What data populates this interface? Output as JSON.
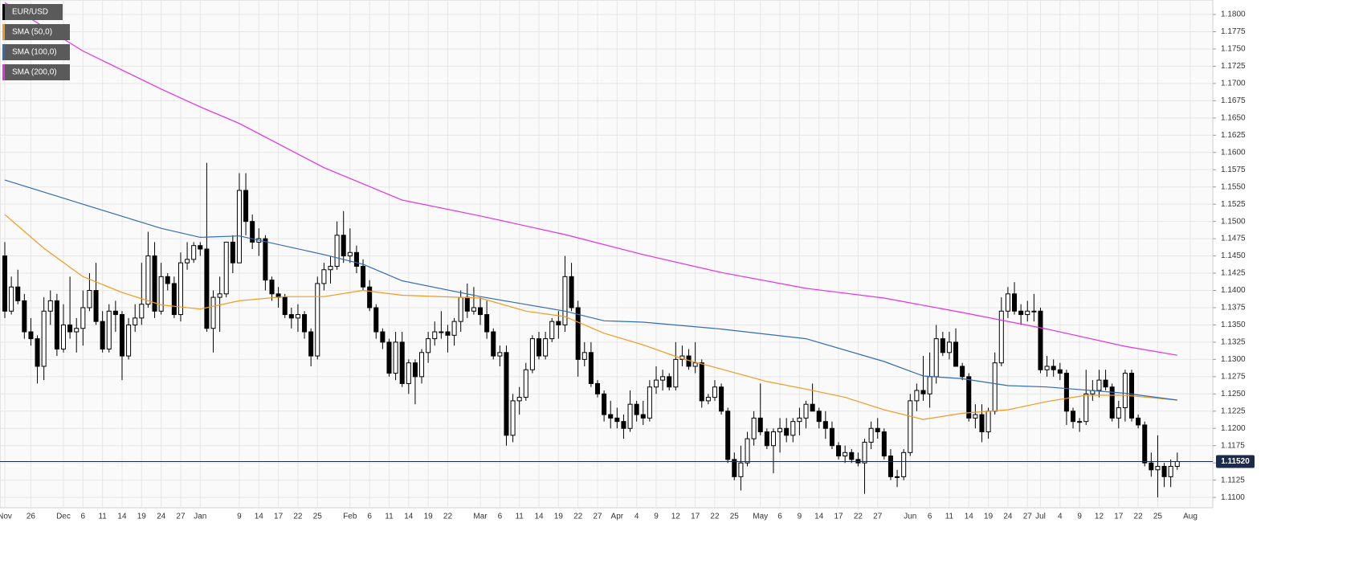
{
  "chart_data": {
    "type": "candlestick",
    "name": "EUR/USD",
    "categories": [
      "Nov",
      null,
      null,
      null,
      "26",
      null,
      null,
      null,
      null,
      "Dec",
      null,
      null,
      "6",
      null,
      null,
      "11",
      null,
      null,
      "14",
      null,
      null,
      "19",
      null,
      null,
      "24",
      null,
      null,
      "27",
      null,
      null,
      "Jan",
      null,
      null,
      null,
      null,
      null,
      "9",
      null,
      null,
      "14",
      null,
      null,
      "17",
      null,
      null,
      "22",
      null,
      null,
      "25",
      null,
      null,
      null,
      null,
      "Feb",
      null,
      null,
      "6",
      null,
      null,
      "11",
      null,
      null,
      "14",
      null,
      null,
      "19",
      null,
      null,
      "22",
      null,
      null,
      null,
      null,
      "Mar",
      null,
      null,
      "6",
      null,
      null,
      "11",
      null,
      null,
      "14",
      null,
      null,
      "19",
      null,
      null,
      "22",
      null,
      null,
      "27",
      null,
      null,
      "Apr",
      null,
      null,
      "4",
      null,
      null,
      "9",
      null,
      null,
      "12",
      null,
      null,
      "17",
      null,
      null,
      "22",
      null,
      null,
      "25",
      null,
      null,
      null,
      "May",
      null,
      null,
      "6",
      null,
      null,
      "9",
      null,
      null,
      "14",
      null,
      null,
      "17",
      null,
      null,
      "22",
      null,
      null,
      "27",
      null,
      null,
      null,
      null,
      "Jun",
      null,
      null,
      "6",
      null,
      null,
      "11",
      null,
      null,
      "14",
      null,
      null,
      "19",
      null,
      null,
      "24",
      null,
      null,
      "27",
      null,
      "Jul",
      null,
      null,
      "4",
      null,
      null,
      "9",
      null,
      null,
      "12",
      null,
      null,
      "17",
      null,
      null,
      "22",
      null,
      null,
      "25",
      null,
      null,
      null,
      null,
      "Aug"
    ],
    "open": [
      1.145,
      1.137,
      1.1405,
      1.1385,
      1.134,
      1.133,
      1.129,
      1.137,
      1.1385,
      1.1315,
      1.135,
      1.134,
      1.1345,
      1.1375,
      1.14,
      1.1355,
      1.1315,
      1.137,
      1.1365,
      1.1305,
      1.135,
      1.136,
      1.138,
      1.145,
      1.137,
      1.142,
      1.141,
      1.1365,
      1.144,
      1.1445,
      1.1465,
      1.146,
      1.1345,
      1.139,
      1.1395,
      1.147,
      1.144,
      1.1545,
      1.15,
      1.147,
      1.1475,
      1.1415,
      1.1395,
      1.139,
      1.1365,
      1.136,
      1.1365,
      1.134,
      1.1305,
      1.141,
      1.143,
      1.1435,
      1.148,
      1.145,
      1.1455,
      1.1435,
      1.1405,
      1.1375,
      1.134,
      1.1325,
      1.128,
      1.1325,
      1.1265,
      1.1295,
      1.1275,
      1.131,
      1.133,
      1.134,
      1.134,
      1.1335,
      1.1355,
      1.139,
      1.137,
      1.1375,
      1.1365,
      1.134,
      1.1305,
      1.131,
      1.119,
      1.124,
      1.1245,
      1.1285,
      1.133,
      1.1305,
      1.133,
      1.1355,
      1.135,
      1.142,
      1.1375,
      1.13,
      1.131,
      1.1265,
      1.125,
      1.122,
      1.1215,
      1.121,
      1.12,
      1.1235,
      1.122,
      1.1215,
      1.126,
      1.127,
      1.1275,
      1.126,
      1.13,
      1.1305,
      1.129,
      1.1295,
      1.124,
      1.1245,
      1.126,
      1.1225,
      1.1155,
      1.113,
      1.115,
      1.1185,
      1.1215,
      1.1195,
      1.1175,
      1.1195,
      1.12,
      1.119,
      1.121,
      1.1215,
      1.1235,
      1.1225,
      1.121,
      1.12,
      1.1175,
      1.116,
      1.1165,
      1.1155,
      1.115,
      1.118,
      1.12,
      1.1195,
      1.116,
      1.113,
      1.113,
      1.1165,
      1.124,
      1.1255,
      1.125,
      1.1275,
      1.133,
      1.131,
      1.1325,
      1.129,
      1.1275,
      1.1215,
      1.122,
      1.1195,
      1.1225,
      1.1295,
      1.137,
      1.1395,
      1.137,
      1.1365,
      1.137,
      1.137,
      1.1285,
      1.129,
      1.1285,
      1.128,
      1.1225,
      1.121,
      1.121,
      1.125,
      1.1255,
      1.127,
      1.126,
      1.1215,
      1.123,
      1.128,
      1.1215,
      1.1205,
      1.115,
      1.114,
      1.1145,
      1.113,
      1.1145,
      null,
      null
    ],
    "high": [
      1.147,
      1.142,
      1.143,
      1.1395,
      1.136,
      1.1335,
      1.139,
      1.14,
      1.1395,
      1.138,
      1.142,
      1.136,
      1.14,
      1.1425,
      1.144,
      1.137,
      1.138,
      1.1385,
      1.137,
      1.136,
      1.138,
      1.144,
      1.1485,
      1.147,
      1.144,
      1.1425,
      1.142,
      1.1455,
      1.147,
      1.147,
      1.147,
      1.1585,
      1.14,
      1.142,
      1.147,
      1.148,
      1.157,
      1.157,
      1.151,
      1.149,
      1.148,
      1.142,
      1.1405,
      1.1395,
      1.1375,
      1.138,
      1.137,
      1.1345,
      1.142,
      1.144,
      1.145,
      1.15,
      1.1515,
      1.149,
      1.1465,
      1.1445,
      1.1415,
      1.138,
      1.1345,
      1.133,
      1.134,
      1.134,
      1.13,
      1.13,
      1.1315,
      1.134,
      1.1355,
      1.137,
      1.135,
      1.136,
      1.14,
      1.141,
      1.1405,
      1.139,
      1.1385,
      1.1345,
      1.132,
      1.132,
      1.125,
      1.126,
      1.1295,
      1.1335,
      1.134,
      1.134,
      1.136,
      1.137,
      1.145,
      1.144,
      1.1385,
      1.1325,
      1.1325,
      1.127,
      1.1255,
      1.124,
      1.123,
      1.122,
      1.1255,
      1.124,
      1.124,
      1.127,
      1.129,
      1.1285,
      1.128,
      1.1325,
      1.132,
      1.1315,
      1.1325,
      1.13,
      1.125,
      1.127,
      1.1265,
      1.123,
      1.1165,
      1.1175,
      1.1195,
      1.1225,
      1.1265,
      1.12,
      1.12,
      1.1215,
      1.1215,
      1.1215,
      1.123,
      1.124,
      1.1265,
      1.123,
      1.1225,
      1.121,
      1.118,
      1.1175,
      1.117,
      1.1165,
      1.1185,
      1.121,
      1.1215,
      1.12,
      1.117,
      1.114,
      1.117,
      1.125,
      1.1265,
      1.1305,
      1.131,
      1.135,
      1.134,
      1.134,
      1.1345,
      1.1295,
      1.128,
      1.1235,
      1.1235,
      1.123,
      1.131,
      1.139,
      1.1405,
      1.1412,
      1.138,
      1.1385,
      1.1395,
      1.1375,
      1.1305,
      1.13,
      1.1295,
      1.1285,
      1.123,
      1.1215,
      1.1285,
      1.127,
      1.1285,
      1.1285,
      1.1265,
      1.124,
      1.1285,
      1.1285,
      1.122,
      1.121,
      1.1165,
      1.119,
      1.115,
      1.1155,
      1.1165,
      null,
      null
    ],
    "low": [
      1.136,
      1.1365,
      1.138,
      1.133,
      1.132,
      1.1265,
      1.127,
      1.135,
      1.1305,
      1.131,
      1.133,
      1.131,
      1.132,
      1.137,
      1.135,
      1.131,
      1.131,
      1.134,
      1.127,
      1.13,
      1.134,
      1.135,
      1.1375,
      1.136,
      1.1365,
      1.14,
      1.136,
      1.1355,
      1.143,
      1.144,
      1.145,
      1.134,
      1.131,
      1.134,
      1.139,
      1.1425,
      1.144,
      1.148,
      1.146,
      1.145,
      1.14,
      1.1385,
      1.1375,
      1.136,
      1.1345,
      1.134,
      1.133,
      1.129,
      1.13,
      1.14,
      1.141,
      1.143,
      1.144,
      1.144,
      1.1425,
      1.14,
      1.137,
      1.133,
      1.1315,
      1.1275,
      1.127,
      1.126,
      1.125,
      1.1235,
      1.1265,
      1.1295,
      1.132,
      1.133,
      1.131,
      1.132,
      1.134,
      1.136,
      1.1365,
      1.135,
      1.133,
      1.13,
      1.129,
      1.1175,
      1.118,
      1.122,
      1.124,
      1.128,
      1.13,
      1.13,
      1.1325,
      1.133,
      1.134,
      1.137,
      1.1275,
      1.129,
      1.126,
      1.1245,
      1.121,
      1.12,
      1.12,
      1.1185,
      1.1195,
      1.121,
      1.1205,
      1.121,
      1.125,
      1.1255,
      1.1255,
      1.1255,
      1.129,
      1.1285,
      1.128,
      1.123,
      1.1235,
      1.124,
      1.122,
      1.115,
      1.1125,
      1.111,
      1.1145,
      1.1175,
      1.119,
      1.117,
      1.1135,
      1.1165,
      1.118,
      1.118,
      1.119,
      1.12,
      1.1225,
      1.12,
      1.1185,
      1.117,
      1.1155,
      1.115,
      1.115,
      1.1145,
      1.1105,
      1.117,
      1.1185,
      1.1155,
      1.1125,
      1.1115,
      1.1125,
      1.116,
      1.1225,
      1.124,
      1.123,
      1.1265,
      1.1305,
      1.13,
      1.129,
      1.127,
      1.121,
      1.12,
      1.118,
      1.1185,
      1.122,
      1.129,
      1.136,
      1.1365,
      1.135,
      1.1355,
      1.1355,
      1.128,
      1.1275,
      1.1275,
      1.127,
      1.1205,
      1.12,
      1.1195,
      1.1205,
      1.124,
      1.1245,
      1.1255,
      1.121,
      1.12,
      1.121,
      1.121,
      1.12,
      1.1145,
      1.113,
      1.11,
      1.1115,
      1.1115,
      1.114,
      null,
      null
    ],
    "close": [
      1.137,
      1.1405,
      1.1385,
      1.134,
      1.133,
      1.129,
      1.137,
      1.1385,
      1.1315,
      1.135,
      1.134,
      1.1345,
      1.1375,
      1.14,
      1.1355,
      1.1315,
      1.137,
      1.1365,
      1.1305,
      1.135,
      1.136,
      1.138,
      1.145,
      1.137,
      1.142,
      1.141,
      1.1365,
      1.144,
      1.1445,
      1.1465,
      1.146,
      1.1345,
      1.139,
      1.1395,
      1.147,
      1.144,
      1.1545,
      1.15,
      1.147,
      1.1475,
      1.1415,
      1.1395,
      1.139,
      1.1365,
      1.136,
      1.1365,
      1.134,
      1.1305,
      1.141,
      1.143,
      1.1435,
      1.148,
      1.145,
      1.1455,
      1.1435,
      1.1405,
      1.1375,
      1.134,
      1.1325,
      1.128,
      1.1325,
      1.1265,
      1.1295,
      1.1275,
      1.131,
      1.133,
      1.134,
      1.134,
      1.1335,
      1.1355,
      1.139,
      1.137,
      1.1375,
      1.1365,
      1.134,
      1.1305,
      1.131,
      1.119,
      1.124,
      1.1245,
      1.1285,
      1.133,
      1.1305,
      1.133,
      1.1355,
      1.135,
      1.142,
      1.1375,
      1.13,
      1.131,
      1.1265,
      1.125,
      1.122,
      1.1215,
      1.121,
      1.12,
      1.1235,
      1.122,
      1.1215,
      1.126,
      1.127,
      1.1275,
      1.126,
      1.13,
      1.1305,
      1.129,
      1.1295,
      1.124,
      1.1245,
      1.126,
      1.1225,
      1.1155,
      1.113,
      1.115,
      1.1185,
      1.1215,
      1.1195,
      1.1175,
      1.1195,
      1.12,
      1.119,
      1.121,
      1.1215,
      1.1235,
      1.1225,
      1.121,
      1.12,
      1.1175,
      1.116,
      1.1165,
      1.1155,
      1.115,
      1.118,
      1.12,
      1.1195,
      1.116,
      1.113,
      1.113,
      1.1165,
      1.124,
      1.1255,
      1.125,
      1.1275,
      1.133,
      1.131,
      1.1325,
      1.129,
      1.1275,
      1.1215,
      1.122,
      1.1195,
      1.1225,
      1.1295,
      1.137,
      1.1395,
      1.137,
      1.1365,
      1.137,
      1.137,
      1.1285,
      1.129,
      1.1285,
      1.128,
      1.1225,
      1.121,
      1.121,
      1.125,
      1.1255,
      1.127,
      1.126,
      1.1215,
      1.123,
      1.128,
      1.1215,
      1.1205,
      1.115,
      1.114,
      1.1145,
      1.113,
      1.1145,
      1.1152,
      null,
      null
    ],
    "overlays": [
      {
        "name": "SMA (50,0)",
        "color": "#f39a1e",
        "x": [
          0,
          6,
          12,
          18,
          24,
          30,
          36,
          43,
          49,
          55,
          61,
          73,
          80,
          86,
          92,
          98,
          104,
          110,
          117,
          123,
          129,
          135,
          141,
          147,
          154,
          160,
          166,
          172,
          180
        ],
        "values": [
          1.151,
          1.1461,
          1.142,
          1.1397,
          1.1379,
          1.1373,
          1.1385,
          1.1391,
          1.1391,
          1.14,
          1.1393,
          1.1389,
          1.137,
          1.1362,
          1.1338,
          1.1321,
          1.1301,
          1.1286,
          1.1268,
          1.1257,
          1.1245,
          1.1227,
          1.1213,
          1.1222,
          1.1227,
          1.1239,
          1.1248,
          1.1248,
          1.1241
        ]
      },
      {
        "name": "SMA (100,0)",
        "color": "#2f6db5",
        "x": [
          0,
          12,
          24,
          30,
          36,
          49,
          55,
          61,
          73,
          86,
          92,
          98,
          110,
          123,
          135,
          141,
          147,
          154,
          160,
          172,
          180
        ],
        "values": [
          1.156,
          1.1525,
          1.149,
          1.1477,
          1.1479,
          1.1452,
          1.1438,
          1.1414,
          1.1391,
          1.137,
          1.1356,
          1.1354,
          1.1344,
          1.133,
          1.1297,
          1.1276,
          1.1272,
          1.1262,
          1.126,
          1.1251,
          1.1241
        ]
      },
      {
        "name": "SMA (200,0)",
        "color": "#e62ee6",
        "x": [
          0,
          12,
          24,
          30,
          36,
          49,
          61,
          73,
          86,
          98,
          110,
          123,
          135,
          147,
          160,
          172,
          180
        ],
        "values": [
          1.1817,
          1.1747,
          1.1692,
          1.1666,
          1.1642,
          1.1578,
          1.1531,
          1.1508,
          1.1481,
          1.1452,
          1.1426,
          1.1403,
          1.1389,
          1.1368,
          1.1344,
          1.1319,
          1.1306
        ]
      }
    ],
    "last_price": {
      "value": 1.1152,
      "label": "1.11520"
    },
    "ylim": [
      1.1085,
      1.1821
    ],
    "yticks": [
      {
        "value": 1.11,
        "label": "1.1100"
      },
      {
        "value": 1.1125,
        "label": "1.1125"
      },
      {
        "value": 1.115,
        "label": "1.1150"
      },
      {
        "value": 1.1175,
        "label": "1.1175"
      },
      {
        "value": 1.12,
        "label": "1.1200"
      },
      {
        "value": 1.1225,
        "label": "1.1225"
      },
      {
        "value": 1.125,
        "label": "1.1250"
      },
      {
        "value": 1.1275,
        "label": "1.1275"
      },
      {
        "value": 1.13,
        "label": "1.1300"
      },
      {
        "value": 1.1325,
        "label": "1.1325"
      },
      {
        "value": 1.135,
        "label": "1.1350"
      },
      {
        "value": 1.1375,
        "label": "1.1375"
      },
      {
        "value": 1.14,
        "label": "1.1400"
      },
      {
        "value": 1.1425,
        "label": "1.1425"
      },
      {
        "value": 1.145,
        "label": "1.1450"
      },
      {
        "value": 1.1475,
        "label": "1.1475"
      },
      {
        "value": 1.15,
        "label": "1.1500"
      },
      {
        "value": 1.1525,
        "label": "1.1525"
      },
      {
        "value": 1.155,
        "label": "1.1550"
      },
      {
        "value": 1.1575,
        "label": "1.1575"
      },
      {
        "value": 1.16,
        "label": "1.1600"
      },
      {
        "value": 1.1625,
        "label": "1.1625"
      },
      {
        "value": 1.165,
        "label": "1.1650"
      },
      {
        "value": 1.1675,
        "label": "1.1675"
      },
      {
        "value": 1.17,
        "label": "1.1700"
      },
      {
        "value": 1.1725,
        "label": "1.1725"
      },
      {
        "value": 1.175,
        "label": "1.1750"
      },
      {
        "value": 1.1775,
        "label": "1.1775"
      },
      {
        "value": 1.18,
        "label": "1.1800"
      }
    ],
    "grid": true,
    "up_color": "#ffffff",
    "down_color": "#000000"
  }
}
